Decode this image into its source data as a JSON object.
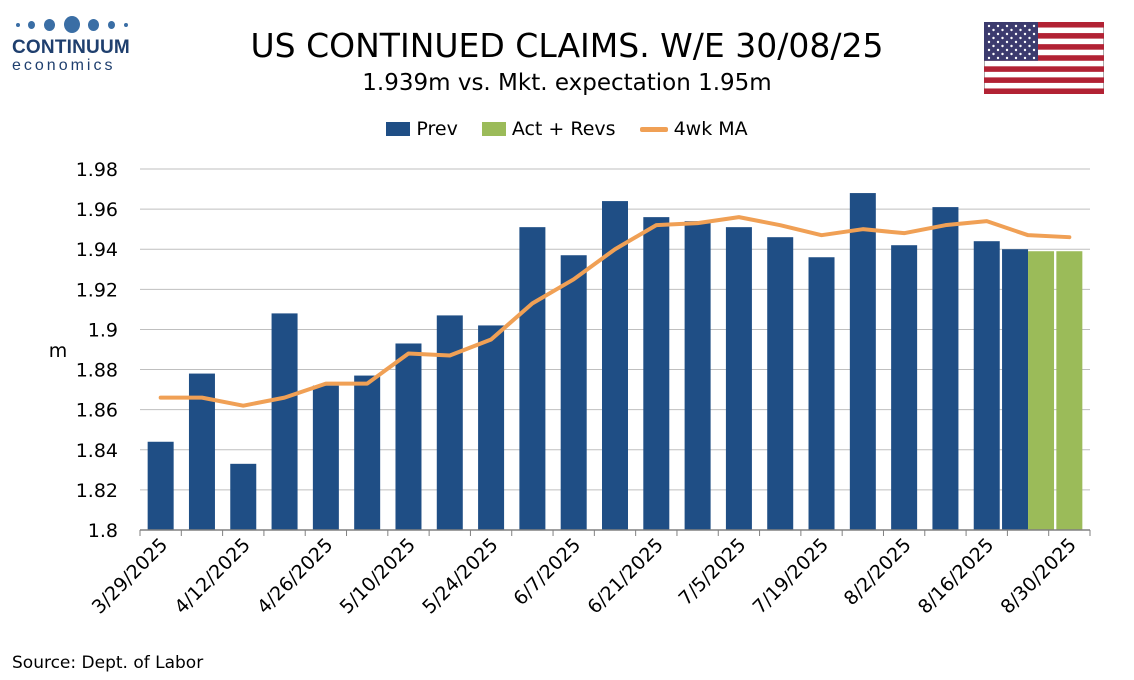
{
  "logo": {
    "name": "CONTINUUM",
    "sub": "economics",
    "color": "#3a6ea5"
  },
  "header": {
    "title": "US CONTINUED CLAIMS. W/E 30/08/25",
    "subtitle": "1.939m vs. Mkt. expectation 1.95m"
  },
  "source": "Source: Dept. of Labor",
  "chart_data": {
    "type": "bar",
    "title": "US CONTINUED CLAIMS. W/E 30/08/25",
    "subtitle": "1.939m vs. Mkt. expectation 1.95m",
    "ylabel": "m",
    "xlabel": "",
    "ylim": [
      1.8,
      1.98
    ],
    "yticks": [
      "1.8",
      "1.82",
      "1.84",
      "1.86",
      "1.88",
      "1.9",
      "1.92",
      "1.94",
      "1.96",
      "1.98"
    ],
    "xtick_labels": [
      "3/29/2025",
      "4/12/2025",
      "4/26/2025",
      "5/10/2025",
      "5/24/2025",
      "6/7/2025",
      "6/21/2025",
      "7/5/2025",
      "7/19/2025",
      "8/2/2025",
      "8/16/2025",
      "8/30/2025"
    ],
    "grid": true,
    "legend_position": "top-center",
    "categories": [
      "3/29/2025",
      "4/5/2025",
      "4/12/2025",
      "4/19/2025",
      "4/26/2025",
      "5/3/2025",
      "5/10/2025",
      "5/17/2025",
      "5/24/2025",
      "5/31/2025",
      "6/7/2025",
      "6/14/2025",
      "6/21/2025",
      "6/28/2025",
      "7/5/2025",
      "7/12/2025",
      "7/19/2025",
      "7/26/2025",
      "8/2/2025",
      "8/9/2025",
      "8/16/2025",
      "8/23/2025",
      "8/30/2025"
    ],
    "series": [
      {
        "name": "Prev",
        "kind": "bar",
        "color": "#1f4e85",
        "values": [
          1.844,
          1.878,
          1.833,
          1.908,
          1.872,
          1.877,
          1.893,
          1.907,
          1.902,
          1.951,
          1.937,
          1.964,
          1.956,
          1.954,
          1.951,
          1.946,
          1.936,
          1.968,
          1.942,
          1.961,
          1.944,
          1.94,
          null
        ]
      },
      {
        "name": "Act + Revs",
        "kind": "bar",
        "color": "#9bbb59",
        "values": [
          null,
          null,
          null,
          null,
          null,
          null,
          null,
          null,
          null,
          null,
          null,
          null,
          null,
          null,
          null,
          null,
          null,
          null,
          null,
          null,
          null,
          1.939,
          1.939
        ]
      },
      {
        "name": "4wk MA",
        "kind": "line",
        "color": "#f0a055",
        "values": [
          1.866,
          1.866,
          1.862,
          1.866,
          1.873,
          1.873,
          1.888,
          1.887,
          1.895,
          1.913,
          1.925,
          1.94,
          1.952,
          1.953,
          1.956,
          1.952,
          1.947,
          1.95,
          1.948,
          1.952,
          1.954,
          1.947,
          1.946
        ]
      }
    ]
  },
  "legend": [
    {
      "label": "Prev",
      "kind": "bar",
      "color": "#1f4e85"
    },
    {
      "label": "Act + Revs",
      "kind": "bar",
      "color": "#9bbb59"
    },
    {
      "label": "4wk MA",
      "kind": "line",
      "color": "#f0a055"
    }
  ]
}
